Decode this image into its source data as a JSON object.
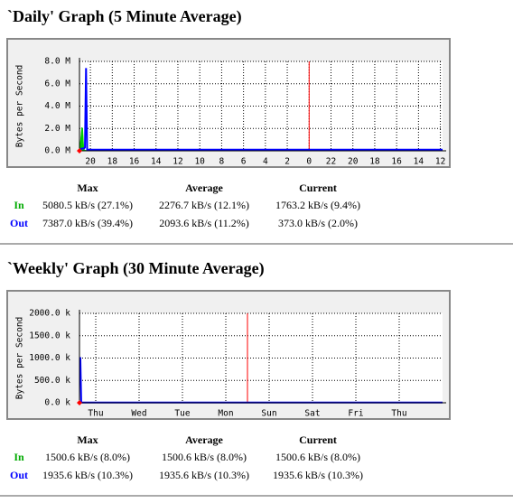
{
  "chart_data": [
    {
      "type": "line",
      "title": "`Daily' Graph (5 Minute Average)",
      "ylabel": "Bytes per Second",
      "x": [
        0,
        0.2,
        0.3,
        0.4,
        0.5,
        0.6,
        0.7,
        33.2
      ],
      "series": [
        {
          "name": "In",
          "color": "#00cc00",
          "fill": true,
          "values": [
            0,
            2.1,
            2.0,
            0.2,
            0.05,
            0.05,
            0.05,
            0.05
          ]
        },
        {
          "name": "Out",
          "color": "#0000ff",
          "fill": false,
          "values": [
            0,
            0.2,
            0.2,
            0.2,
            0.3,
            7.4,
            0.1,
            0.1
          ]
        }
      ],
      "xlim": [
        0,
        33.2
      ],
      "xticks": [
        {
          "value": 1,
          "label": "20"
        },
        {
          "value": 3,
          "label": "18"
        },
        {
          "value": 5,
          "label": "16"
        },
        {
          "value": 7,
          "label": "14"
        },
        {
          "value": 9,
          "label": "12"
        },
        {
          "value": 11,
          "label": "10"
        },
        {
          "value": 13,
          "label": "8"
        },
        {
          "value": 15,
          "label": "6"
        },
        {
          "value": 17,
          "label": "4"
        },
        {
          "value": 19,
          "label": "2"
        },
        {
          "value": 21,
          "label": "0"
        },
        {
          "value": 23,
          "label": "22"
        },
        {
          "value": 25,
          "label": "20"
        },
        {
          "value": 27,
          "label": "18"
        },
        {
          "value": 29,
          "label": "16"
        },
        {
          "value": 31,
          "label": "14"
        },
        {
          "value": 33,
          "label": "12"
        }
      ],
      "ylim": [
        0,
        8
      ],
      "yticks": [
        {
          "value": 0,
          "label": "0.0 M"
        },
        {
          "value": 2,
          "label": "2.0 M"
        },
        {
          "value": 4,
          "label": "4.0 M"
        },
        {
          "value": 6,
          "label": "6.0 M"
        },
        {
          "value": 8,
          "label": "8.0 M"
        }
      ],
      "markers": [
        {
          "x": 21,
          "color": "#ff0000"
        }
      ],
      "grid": true
    },
    {
      "type": "line",
      "title": "`Weekly' Graph (30 Minute Average)",
      "ylabel": "Bytes per Second",
      "x": [
        0,
        0.02,
        0.04,
        8.375
      ],
      "series": [
        {
          "name": "In",
          "color": "#00cc00",
          "fill": true,
          "values": [
            0,
            20,
            5,
            5
          ]
        },
        {
          "name": "Out",
          "color": "#0000ff",
          "fill": false,
          "values": [
            1000,
            1000,
            5,
            5
          ]
        }
      ],
      "xlim": [
        0,
        8.375
      ],
      "xticks": [
        {
          "value": 0.375,
          "label": "Thu"
        },
        {
          "value": 1.375,
          "label": "Wed"
        },
        {
          "value": 2.375,
          "label": "Tue"
        },
        {
          "value": 3.375,
          "label": "Mon"
        },
        {
          "value": 4.375,
          "label": "Sun"
        },
        {
          "value": 5.375,
          "label": "Sat"
        },
        {
          "value": 6.375,
          "label": "Fri"
        },
        {
          "value": 7.375,
          "label": "Thu"
        }
      ],
      "ylim": [
        0,
        2000
      ],
      "yticks": [
        {
          "value": 0,
          "label": "0.0 k"
        },
        {
          "value": 500,
          "label": "500.0 k"
        },
        {
          "value": 1000,
          "label": "1000.0 k"
        },
        {
          "value": 1500,
          "label": "1500.0 k"
        },
        {
          "value": 2000,
          "label": "2000.0 k"
        }
      ],
      "markers": [
        {
          "x": 3.875,
          "color": "#ff0000"
        }
      ],
      "grid": true
    }
  ],
  "stats": [
    {
      "headers": [
        "Max",
        "Average",
        "Current"
      ],
      "rows": [
        {
          "label": "In",
          "color": "#00aa00",
          "cells": [
            "5080.5 kB/s (27.1%)",
            "2276.7 kB/s (12.1%)",
            "1763.2 kB/s (9.4%)"
          ]
        },
        {
          "label": "Out",
          "color": "#0000ff",
          "cells": [
            "7387.0 kB/s (39.4%)",
            "2093.6 kB/s (11.2%)",
            "373.0 kB/s (2.0%)"
          ]
        }
      ]
    },
    {
      "headers": [
        "Max",
        "Average",
        "Current"
      ],
      "rows": [
        {
          "label": "In",
          "color": "#00aa00",
          "cells": [
            "1500.6 kB/s (8.0%)",
            "1500.6 kB/s (8.0%)",
            "1500.6 kB/s (8.0%)"
          ]
        },
        {
          "label": "Out",
          "color": "#0000ff",
          "cells": [
            "1935.6 kB/s (10.3%)",
            "1935.6 kB/s (10.3%)",
            "1935.6 kB/s (10.3%)"
          ]
        }
      ]
    }
  ]
}
